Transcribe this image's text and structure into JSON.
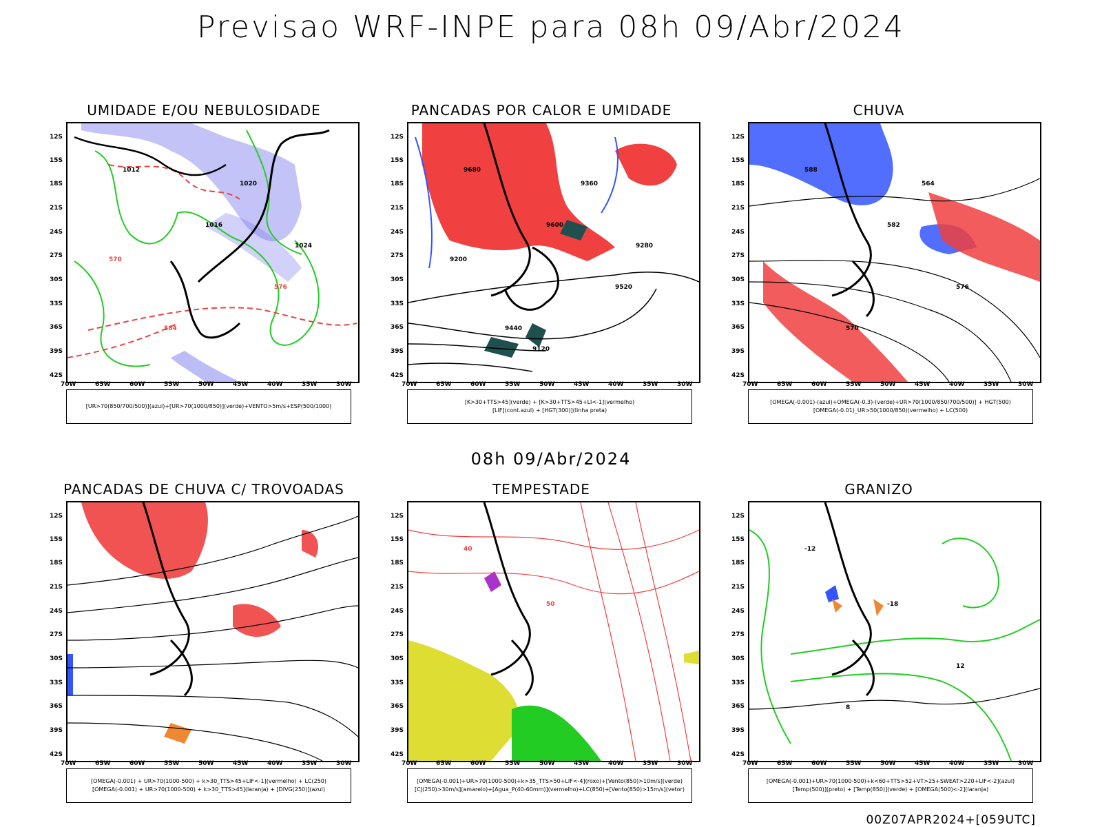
{
  "title": "Previsao WRF-INPE  para 08h 09/Abr/2024",
  "subtitle": "08h 09/Abr/2024",
  "run_info": "00Z07APR2024+[059UTC]",
  "lat_ticks": [
    "12S",
    "15S",
    "18S",
    "21S",
    "24S",
    "27S",
    "30S",
    "33S",
    "36S",
    "39S",
    "42S"
  ],
  "lon_ticks": [
    "70W",
    "65W",
    "60W",
    "55W",
    "50W",
    "45W",
    "40W",
    "35W",
    "30W"
  ],
  "colors": {
    "blue": "#7a7aee",
    "green": "#22cc22",
    "red": "#f04040",
    "darkteal": "#1f4f4f",
    "yellow": "#dddd33",
    "orange": "#ee8833",
    "purple": "#aa33cc"
  },
  "panels": [
    {
      "title": "UMIDADE E/OU NEBULOSIDADE",
      "legend1": "[UR>70(850/700/500)](azul)+[UR>70(1000/850)](verde)+VENTO>5m/s+ESP(500/1000)",
      "legend2": "",
      "contours": [
        "1012",
        "1016",
        "576",
        "584",
        "1020",
        "1024",
        "570"
      ]
    },
    {
      "title": "PANCADAS POR CALOR E UMIDADE",
      "legend1": "[K>30+TTS>45](verde) + [K>30+TTS>45+LI<-1](vermelho)",
      "legend2": "[LIF](cont.azul) + [HGT(300)](linha preta)",
      "contours": [
        "9680",
        "9600",
        "9520",
        "9440",
        "9360",
        "9280",
        "9200",
        "9120"
      ]
    },
    {
      "title": "CHUVA",
      "legend1": "[OMEGA(-0.001)-(azul)+OMEGA(-0.3)-(verde)+UR>70(1000/850/700/500)] + HGT(500)",
      "legend2": "[OMEGA(-0.01)_UR>50(1000/850)(vermelho) + LC(500)",
      "contours": [
        "588",
        "582",
        "576",
        "570",
        "564"
      ]
    },
    {
      "title": "PANCADAS DE CHUVA C/ TROVOADAS",
      "legend1": "[OMEGA(-0.001) + UR>70(1000-500) + k>30_TTS>45+LIF<-1](vermelho) + LC(250)",
      "legend2": "[OMEGA(-0.001) + UR>70(1000-500) + k>30_TTS>45](laranja) + [DIVG(250)](azul)",
      "contours": []
    },
    {
      "title": "TEMPESTADE",
      "legend1": "[OMEGA(-0.001)+UR>70(1000-500)+k>35_TTS>50+LIF<-4](roxo)+[Vento(850)>10m/s](verde)",
      "legend2": "[CJ(250)>30m/s](amarelo)+[Agua_P(40-60mm)](vermelho)+LC(850)+[Vento(850)>15m/s](vetor)",
      "contours": [
        "40",
        "50"
      ]
    },
    {
      "title": "GRANIZO",
      "legend1": "[OMEGA(-0.001)+UR>70(1000-500)+k<60+TTS>52+VT>25+SWEAT>220+LIF<-2](azul)",
      "legend2": "[Temp(500)](preto) + [Temp(850)](verde) + [OMEGA(500)<-2](laranja)",
      "contours": [
        "-12",
        "-18",
        "12",
        "8"
      ]
    }
  ]
}
